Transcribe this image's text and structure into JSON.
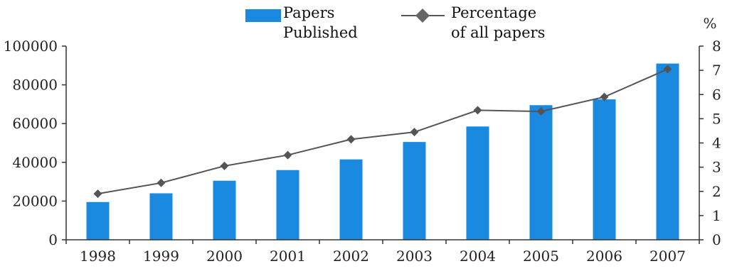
{
  "chart_data": {
    "type": "bar",
    "categories": [
      "1998",
      "1999",
      "2000",
      "2001",
      "2002",
      "2003",
      "2004",
      "2005",
      "2006",
      "2007"
    ],
    "series": [
      {
        "name": "Papers Published",
        "type": "bar",
        "axis": "left",
        "color": "#1a8ae0",
        "values": [
          19500,
          24000,
          30500,
          36000,
          41500,
          50500,
          58500,
          69500,
          72500,
          91000
        ]
      },
      {
        "name": "Percentage of all papers",
        "type": "line",
        "axis": "right",
        "color": "#555555",
        "marker": "diamond",
        "values": [
          1.9,
          2.35,
          3.05,
          3.5,
          4.15,
          4.45,
          5.35,
          5.3,
          5.9,
          7.05
        ]
      }
    ],
    "left_axis": {
      "ylim": [
        0,
        100000
      ],
      "ticks": [
        "0",
        "20000",
        "40000",
        "60000",
        "80000",
        "100000"
      ]
    },
    "right_axis": {
      "ylim": [
        0,
        8
      ],
      "unit_label": "%",
      "ticks": [
        "0",
        "1",
        "2",
        "3",
        "4",
        "5",
        "6",
        "7",
        "8"
      ]
    },
    "legend": {
      "placement": "top",
      "items": [
        {
          "lines": [
            "Papers",
            "Published"
          ]
        },
        {
          "lines": [
            "Percentage",
            "of all papers"
          ]
        }
      ]
    },
    "grid": false
  }
}
